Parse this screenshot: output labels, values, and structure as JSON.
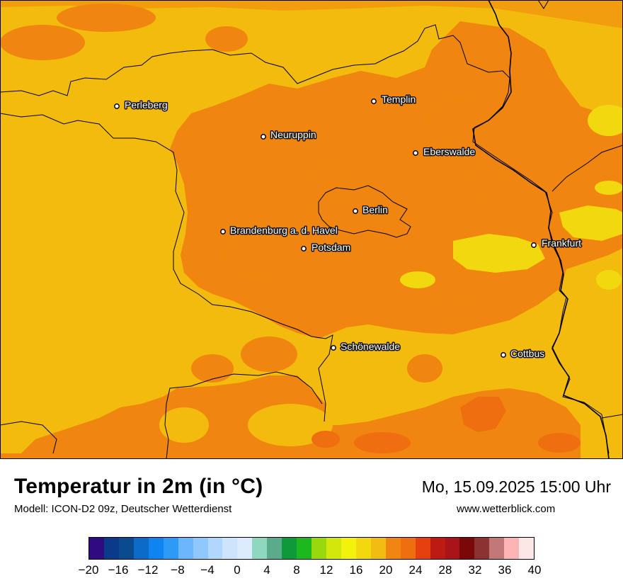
{
  "title": "Temperatur in 2m (in °C)",
  "subtitle": "Modell: ICON-D2 09z, Deutscher Wetterdienst",
  "datetime": "Mo, 15.09.2025 15:00 Uhr",
  "website": "www.wetterblick.com",
  "colors": {
    "base": "#f0850f",
    "mid": "#f4bb0f",
    "warm": "#f2d80f",
    "hot": "#ee6e10"
  },
  "cities": [
    {
      "name": "Perleberg"
    },
    {
      "name": "Templin"
    },
    {
      "name": "Neuruppin"
    },
    {
      "name": "Eberswalde"
    },
    {
      "name": "Berlin"
    },
    {
      "name": "Brandenburg a. d. Havel"
    },
    {
      "name": "Potsdam"
    },
    {
      "name": "Frankfurt"
    },
    {
      "name": "Schönewalde"
    },
    {
      "name": "Cottbus"
    }
  ],
  "legend": {
    "colors": [
      "#2f0a80",
      "#0b3a8a",
      "#0b4a8f",
      "#0c6ac8",
      "#0f84f0",
      "#2e9af8",
      "#6bb6fc",
      "#8ec8fc",
      "#b0d8fc",
      "#cde5fc",
      "#dcecfc",
      "#90d7c0",
      "#5aab8c",
      "#0e9a3a",
      "#1cb81e",
      "#9ad80e",
      "#d2e80c",
      "#f2f20c",
      "#f2d80f",
      "#f2bd10",
      "#f0850f",
      "#ee6e10",
      "#e6400f",
      "#be1a14",
      "#a81418",
      "#7a0808",
      "#8c3232",
      "#c27878",
      "#fcb4b4",
      "#fce6e6"
    ],
    "ticks": [
      "−20",
      "−16",
      "−12",
      "−8",
      "−4",
      "0",
      "4",
      "8",
      "12",
      "16",
      "20",
      "24",
      "28",
      "32",
      "36",
      "40"
    ]
  }
}
